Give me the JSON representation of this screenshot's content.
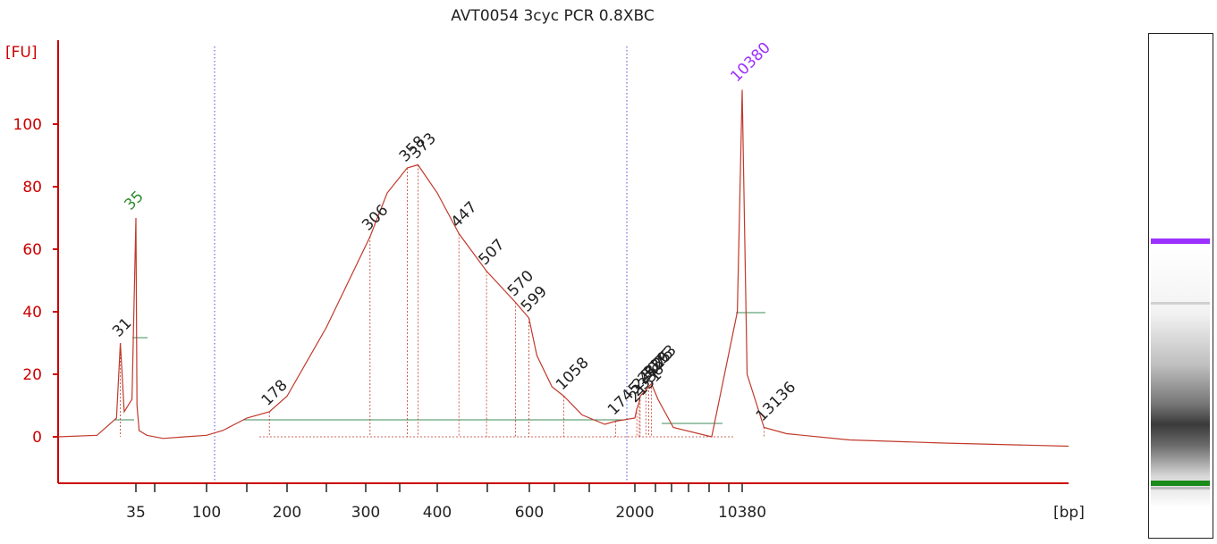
{
  "chart_data": {
    "type": "line",
    "title": "AVT0054 3cyc PCR 0.8XBC",
    "ylabel": "[FU]",
    "xlabel": "[bp]",
    "ylim": [
      -15,
      120
    ],
    "y_ticks": [
      0,
      20,
      40,
      60,
      80,
      100
    ],
    "x_tick_labels": [
      "35",
      "100",
      "200",
      "300",
      "400",
      "600",
      "2000",
      "10380"
    ],
    "marker_labels": [
      {
        "label": "35",
        "color": "#2e8b2e"
      },
      {
        "label": "10380",
        "color": "#9b30ff"
      }
    ],
    "peak_labels": [
      "31",
      "178",
      "306",
      "358",
      "373",
      "447",
      "507",
      "570",
      "599",
      "1058",
      "1745",
      "2151",
      "2338",
      "2412",
      "2856",
      "3075",
      "3293",
      "13136"
    ],
    "series": [
      {
        "color": "#c0392b",
        "x": [
          15,
          25,
          30,
          31,
          32,
          34,
          35,
          36,
          38,
          45,
          60,
          80,
          100,
          120,
          150,
          178,
          200,
          250,
          306,
          330,
          358,
          373,
          400,
          447,
          507,
          570,
          599,
          700,
          900,
          1058,
          1300,
          1600,
          1745,
          2000,
          2151,
          2338,
          2412,
          2856,
          3075,
          3293,
          3800,
          5000,
          8000,
          10000,
          10380,
          11000,
          13136,
          16000,
          25000,
          40000,
          60000
        ],
        "values": [
          0,
          0.5,
          6,
          30,
          8,
          12,
          70,
          10,
          2,
          0.5,
          -0.5,
          0,
          0.5,
          2,
          6,
          8,
          13,
          35,
          64,
          78,
          86,
          87,
          78,
          65,
          53,
          43,
          38,
          26,
          16,
          13,
          7,
          4,
          5,
          6,
          9,
          11,
          13,
          15,
          16,
          17,
          12,
          3,
          0,
          40,
          111,
          20,
          3,
          1,
          -1,
          -2,
          -3
        ]
      }
    ]
  },
  "gel": {
    "upper_marker_color": "#9b30ff",
    "lower_marker_color": "#1a8a1a"
  }
}
